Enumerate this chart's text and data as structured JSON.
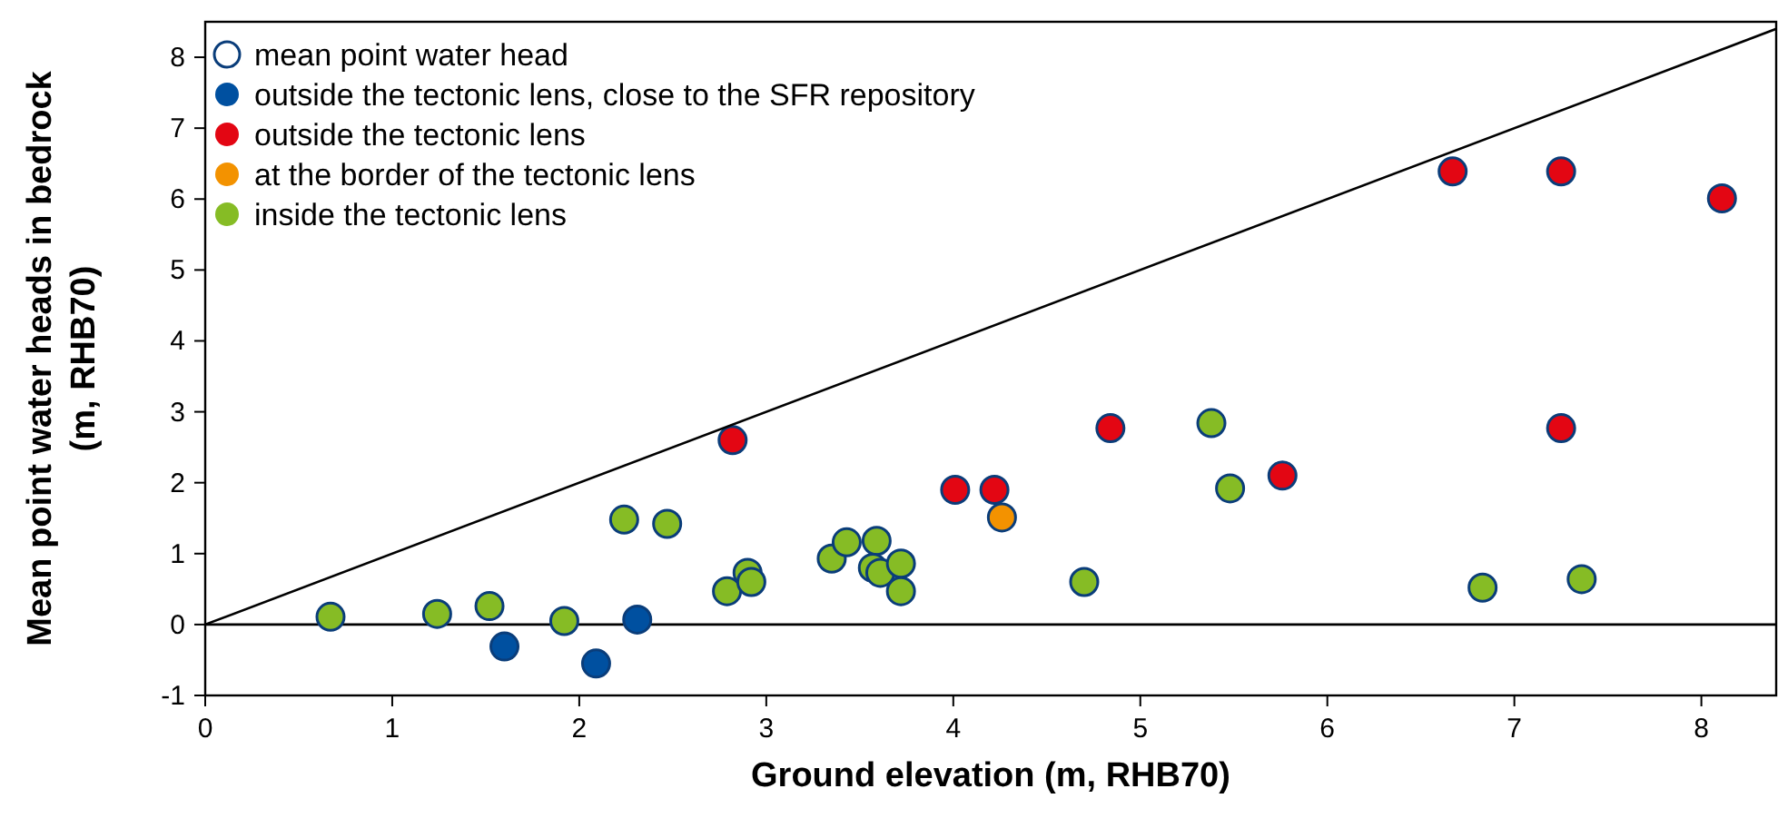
{
  "chart_data": {
    "type": "scatter",
    "xlabel": "Ground elevation (m, RHB70)",
    "ylabel": "Mean point water heads in bedrock\n(m, RHB70)",
    "xlim": [
      0,
      8.4
    ],
    "ylim": [
      -1,
      8.5
    ],
    "xticks": [
      0,
      1,
      2,
      3,
      4,
      5,
      6,
      7,
      8
    ],
    "yticks": [
      -1,
      0,
      1,
      2,
      3,
      4,
      5,
      6,
      7,
      8
    ],
    "grid": false,
    "legend": "top left",
    "marker": "circle",
    "ref_lines": [
      {
        "axis": "y",
        "value": 0,
        "color": "#000000"
      }
    ],
    "series": [
      {
        "name": "mean point water head",
        "color": "#ffffff"
      },
      {
        "name": "outside the tectonic lens, close to the SFR repository",
        "color": "#0050a0",
        "x": [
          1.6,
          2.09,
          2.31
        ],
        "values": [
          -0.31,
          -0.55,
          0.07
        ]
      },
      {
        "name": "outside the tectonic lens",
        "color": "#e30613",
        "x": [
          2.82,
          4.01,
          4.22,
          4.84,
          5.76,
          6.67,
          7.25,
          7.25,
          8.11
        ],
        "values": [
          2.6,
          1.9,
          1.9,
          2.77,
          2.1,
          6.39,
          6.39,
          2.77,
          6.01
        ]
      },
      {
        "name": "at the border of the tectonic lens",
        "color": "#f39200",
        "x": [
          4.26
        ],
        "values": [
          1.51
        ]
      },
      {
        "name": "inside the tectonic lens",
        "color": "#86bc25",
        "x": [
          0.67,
          1.24,
          1.52,
          1.92,
          2.24,
          2.47,
          2.79,
          2.9,
          2.92,
          3.35,
          3.43,
          3.59,
          3.57,
          3.61,
          3.72,
          3.72,
          4.7,
          5.38,
          5.48,
          6.83,
          7.36
        ],
        "values": [
          0.11,
          0.15,
          0.26,
          0.05,
          1.48,
          1.42,
          0.47,
          0.73,
          0.6,
          0.93,
          1.16,
          1.18,
          0.8,
          0.73,
          0.86,
          0.47,
          0.6,
          2.84,
          1.92,
          0.52,
          0.64
        ]
      },
      {
        "type": "line",
        "color": "#000000",
        "line_style": "solid",
        "marker": "none",
        "x": [
          0,
          8.4
        ],
        "values": [
          0,
          8.4
        ]
      }
    ]
  }
}
